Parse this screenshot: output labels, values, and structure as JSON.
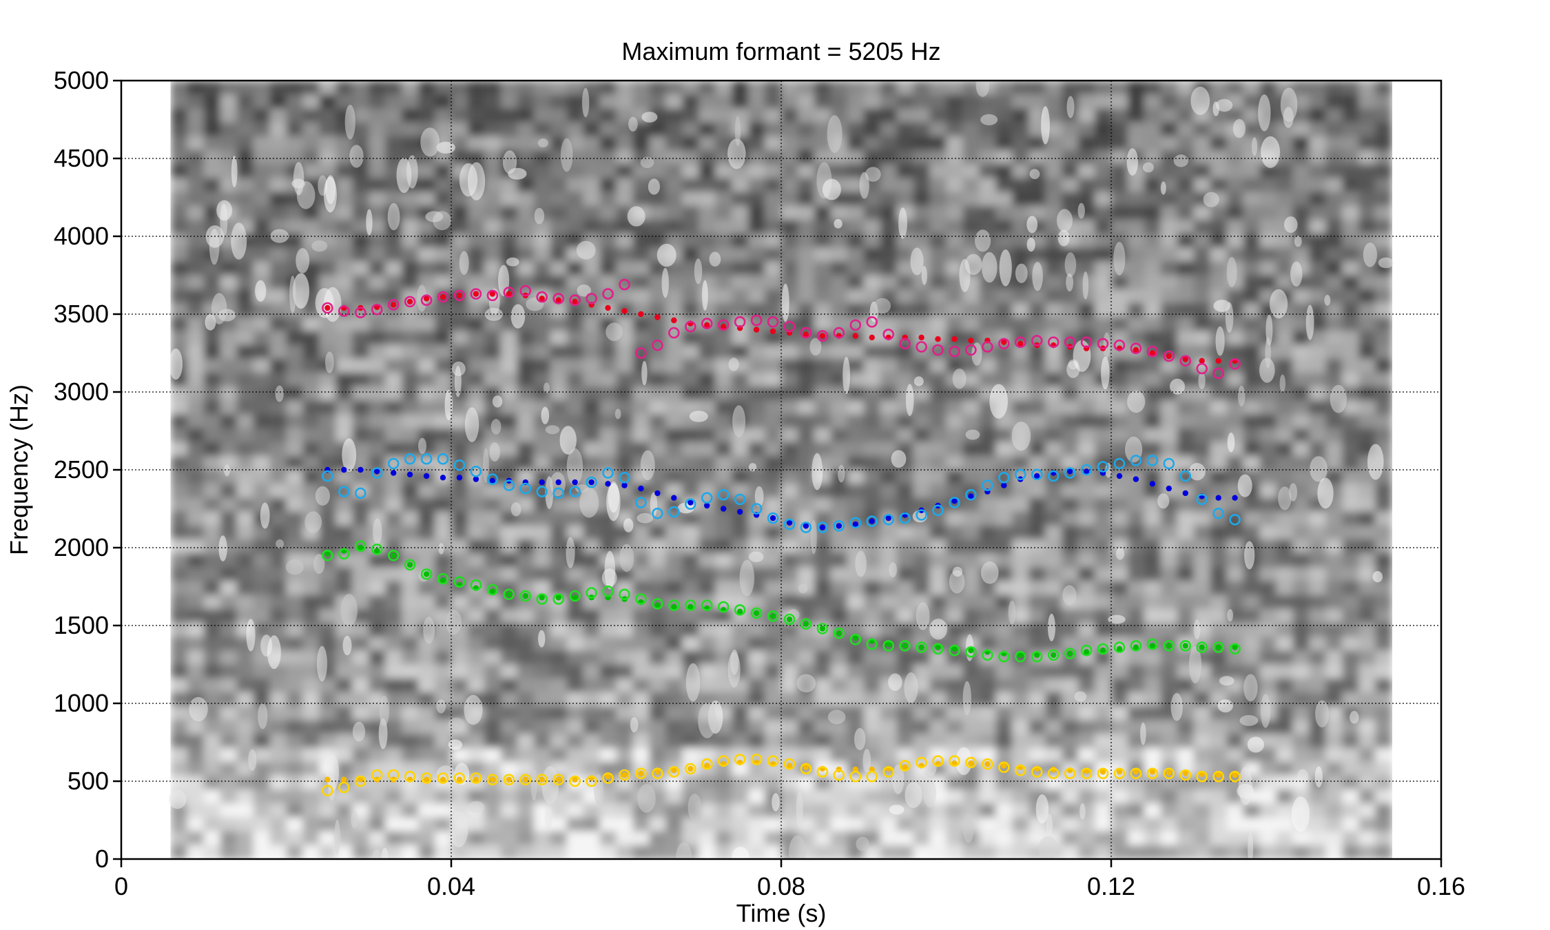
{
  "chart_data": {
    "type": "scatter",
    "title": "Maximum formant = 5205 Hz",
    "xlabel": "Time (s)",
    "ylabel": "Frequency (Hz)",
    "xlim": [
      0,
      0.16
    ],
    "ylim": [
      0,
      5000
    ],
    "xticks": [
      0,
      0.04,
      0.08,
      0.12,
      0.16
    ],
    "xtick_labels": [
      "0",
      "0.04",
      "0.08",
      "0.12",
      "0.16"
    ],
    "yticks": [
      0,
      500,
      1000,
      1500,
      2000,
      2500,
      3000,
      3500,
      4000,
      4500,
      5000
    ],
    "ytick_labels": [
      "0",
      "500",
      "1000",
      "1500",
      "2000",
      "2500",
      "3000",
      "3500",
      "4000",
      "4500",
      "5000"
    ],
    "grid": true,
    "spectrogram_time_range": [
      0.006,
      0.154
    ],
    "series": [
      {
        "style": "dots",
        "color": "#e8001c",
        "x": [
          0.025,
          0.027,
          0.029,
          0.031,
          0.033,
          0.035,
          0.037,
          0.039,
          0.041,
          0.043,
          0.045,
          0.047,
          0.049,
          0.051,
          0.053,
          0.055,
          0.057,
          0.059,
          0.061,
          0.063,
          0.065,
          0.067,
          0.069,
          0.071,
          0.073,
          0.075,
          0.077,
          0.079,
          0.081,
          0.083,
          0.085,
          0.087,
          0.089,
          0.091,
          0.093,
          0.095,
          0.097,
          0.099,
          0.101,
          0.103,
          0.105,
          0.107,
          0.109,
          0.111,
          0.113,
          0.115,
          0.117,
          0.119,
          0.121,
          0.123,
          0.125,
          0.127,
          0.129,
          0.131,
          0.133,
          0.135
        ],
        "y": [
          3540,
          3540,
          3540,
          3545,
          3560,
          3580,
          3600,
          3610,
          3620,
          3630,
          3630,
          3630,
          3620,
          3600,
          3590,
          3580,
          3560,
          3540,
          3520,
          3500,
          3480,
          3460,
          3440,
          3430,
          3420,
          3410,
          3400,
          3390,
          3380,
          3370,
          3360,
          3360,
          3360,
          3350,
          3350,
          3350,
          3350,
          3340,
          3340,
          3330,
          3330,
          3320,
          3310,
          3300,
          3300,
          3290,
          3280,
          3280,
          3280,
          3270,
          3250,
          3230,
          3210,
          3200,
          3200,
          3200
        ]
      },
      {
        "style": "circles",
        "color": "#e0208a",
        "x": [
          0.025,
          0.027,
          0.029,
          0.031,
          0.033,
          0.035,
          0.037,
          0.039,
          0.041,
          0.043,
          0.045,
          0.047,
          0.049,
          0.051,
          0.053,
          0.055,
          0.057,
          0.059,
          0.061,
          0.063,
          0.065,
          0.067,
          0.069,
          0.071,
          0.073,
          0.075,
          0.077,
          0.079,
          0.081,
          0.083,
          0.085,
          0.087,
          0.089,
          0.091,
          0.093,
          0.095,
          0.097,
          0.099,
          0.101,
          0.103,
          0.105,
          0.107,
          0.109,
          0.111,
          0.113,
          0.115,
          0.117,
          0.119,
          0.121,
          0.123,
          0.125,
          0.127,
          0.129,
          0.131,
          0.133,
          0.135
        ],
        "y": [
          3540,
          3520,
          3510,
          3530,
          3560,
          3580,
          3590,
          3610,
          3620,
          3630,
          3620,
          3640,
          3650,
          3610,
          3600,
          3590,
          3600,
          3630,
          3690,
          3250,
          3300,
          3380,
          3420,
          3440,
          3430,
          3450,
          3460,
          3450,
          3420,
          3380,
          3360,
          3380,
          3430,
          3450,
          3370,
          3310,
          3290,
          3270,
          3260,
          3270,
          3290,
          3310,
          3320,
          3330,
          3320,
          3320,
          3320,
          3310,
          3300,
          3280,
          3260,
          3230,
          3200,
          3150,
          3120,
          3180
        ]
      },
      {
        "style": "dots",
        "color": "#0000dd",
        "x": [
          0.025,
          0.027,
          0.029,
          0.031,
          0.033,
          0.035,
          0.037,
          0.039,
          0.041,
          0.043,
          0.045,
          0.047,
          0.049,
          0.051,
          0.053,
          0.055,
          0.057,
          0.059,
          0.061,
          0.063,
          0.065,
          0.067,
          0.069,
          0.071,
          0.073,
          0.075,
          0.077,
          0.079,
          0.081,
          0.083,
          0.085,
          0.087,
          0.089,
          0.091,
          0.093,
          0.095,
          0.097,
          0.099,
          0.101,
          0.103,
          0.105,
          0.107,
          0.109,
          0.111,
          0.113,
          0.115,
          0.117,
          0.119,
          0.121,
          0.123,
          0.125,
          0.127,
          0.129,
          0.131,
          0.133,
          0.135
        ],
        "y": [
          2500,
          2500,
          2500,
          2490,
          2480,
          2470,
          2460,
          2450,
          2450,
          2440,
          2430,
          2430,
          2420,
          2420,
          2420,
          2420,
          2420,
          2410,
          2400,
          2380,
          2350,
          2320,
          2290,
          2270,
          2250,
          2230,
          2210,
          2190,
          2160,
          2140,
          2130,
          2140,
          2150,
          2170,
          2190,
          2210,
          2240,
          2270,
          2300,
          2330,
          2360,
          2400,
          2440,
          2460,
          2480,
          2490,
          2490,
          2480,
          2460,
          2440,
          2410,
          2380,
          2350,
          2330,
          2320,
          2320
        ]
      },
      {
        "style": "circles",
        "color": "#1ea8ea",
        "x": [
          0.025,
          0.027,
          0.029,
          0.031,
          0.033,
          0.035,
          0.037,
          0.039,
          0.041,
          0.043,
          0.045,
          0.047,
          0.049,
          0.051,
          0.053,
          0.055,
          0.057,
          0.059,
          0.061,
          0.063,
          0.065,
          0.067,
          0.069,
          0.071,
          0.073,
          0.075,
          0.077,
          0.079,
          0.081,
          0.083,
          0.085,
          0.087,
          0.089,
          0.091,
          0.093,
          0.095,
          0.097,
          0.099,
          0.101,
          0.103,
          0.105,
          0.107,
          0.109,
          0.111,
          0.113,
          0.115,
          0.117,
          0.119,
          0.121,
          0.123,
          0.125,
          0.127,
          0.129,
          0.131,
          0.133,
          0.135
        ],
        "y": [
          2460,
          2360,
          2350,
          2480,
          2540,
          2570,
          2570,
          2570,
          2530,
          2490,
          2440,
          2400,
          2380,
          2360,
          2350,
          2360,
          2420,
          2480,
          2450,
          2290,
          2220,
          2230,
          2280,
          2320,
          2340,
          2310,
          2250,
          2190,
          2150,
          2130,
          2130,
          2140,
          2160,
          2170,
          2180,
          2190,
          2210,
          2240,
          2290,
          2340,
          2400,
          2450,
          2470,
          2470,
          2460,
          2480,
          2500,
          2520,
          2540,
          2560,
          2560,
          2540,
          2460,
          2310,
          2220,
          2180
        ]
      },
      {
        "style": "dots",
        "color": "#00bb00",
        "x": [
          0.025,
          0.027,
          0.029,
          0.031,
          0.033,
          0.035,
          0.037,
          0.039,
          0.041,
          0.043,
          0.045,
          0.047,
          0.049,
          0.051,
          0.053,
          0.055,
          0.057,
          0.059,
          0.061,
          0.063,
          0.065,
          0.067,
          0.069,
          0.071,
          0.073,
          0.075,
          0.077,
          0.079,
          0.081,
          0.083,
          0.085,
          0.087,
          0.089,
          0.091,
          0.093,
          0.095,
          0.097,
          0.099,
          0.101,
          0.103,
          0.105,
          0.107,
          0.109,
          0.111,
          0.113,
          0.115,
          0.117,
          0.119,
          0.121,
          0.123,
          0.125,
          0.127,
          0.129,
          0.131,
          0.133,
          0.135
        ],
        "y": [
          1960,
          1980,
          2000,
          1980,
          1950,
          1890,
          1830,
          1790,
          1760,
          1740,
          1720,
          1700,
          1690,
          1680,
          1680,
          1680,
          1680,
          1680,
          1670,
          1650,
          1630,
          1620,
          1620,
          1610,
          1600,
          1590,
          1580,
          1560,
          1540,
          1510,
          1480,
          1450,
          1420,
          1400,
          1380,
          1370,
          1360,
          1360,
          1350,
          1340,
          1330,
          1320,
          1310,
          1310,
          1310,
          1320,
          1330,
          1340,
          1350,
          1360,
          1370,
          1370,
          1370,
          1360,
          1360,
          1360
        ]
      },
      {
        "style": "circles",
        "color": "#22dd22",
        "x": [
          0.025,
          0.027,
          0.029,
          0.031,
          0.033,
          0.035,
          0.037,
          0.039,
          0.041,
          0.043,
          0.045,
          0.047,
          0.049,
          0.051,
          0.053,
          0.055,
          0.057,
          0.059,
          0.061,
          0.063,
          0.065,
          0.067,
          0.069,
          0.071,
          0.073,
          0.075,
          0.077,
          0.079,
          0.081,
          0.083,
          0.085,
          0.087,
          0.089,
          0.091,
          0.093,
          0.095,
          0.097,
          0.099,
          0.101,
          0.103,
          0.105,
          0.107,
          0.109,
          0.111,
          0.113,
          0.115,
          0.117,
          0.119,
          0.121,
          0.123,
          0.125,
          0.127,
          0.129,
          0.131,
          0.133,
          0.135
        ],
        "y": [
          1950,
          1960,
          2010,
          1990,
          1950,
          1890,
          1830,
          1800,
          1780,
          1760,
          1730,
          1700,
          1690,
          1670,
          1670,
          1690,
          1710,
          1720,
          1700,
          1670,
          1640,
          1630,
          1630,
          1630,
          1620,
          1600,
          1580,
          1560,
          1540,
          1510,
          1480,
          1450,
          1410,
          1380,
          1370,
          1370,
          1360,
          1350,
          1340,
          1330,
          1310,
          1300,
          1300,
          1300,
          1310,
          1320,
          1340,
          1350,
          1360,
          1370,
          1380,
          1370,
          1370,
          1360,
          1360,
          1350
        ]
      },
      {
        "style": "dots",
        "color": "#f5b800",
        "x": [
          0.025,
          0.027,
          0.029,
          0.031,
          0.033,
          0.035,
          0.037,
          0.039,
          0.041,
          0.043,
          0.045,
          0.047,
          0.049,
          0.051,
          0.053,
          0.055,
          0.057,
          0.059,
          0.061,
          0.063,
          0.065,
          0.067,
          0.069,
          0.071,
          0.073,
          0.075,
          0.077,
          0.079,
          0.081,
          0.083,
          0.085,
          0.087,
          0.089,
          0.091,
          0.093,
          0.095,
          0.097,
          0.099,
          0.101,
          0.103,
          0.105,
          0.107,
          0.109,
          0.111,
          0.113,
          0.115,
          0.117,
          0.119,
          0.121,
          0.123,
          0.125,
          0.127,
          0.129,
          0.131,
          0.133,
          0.135
        ],
        "y": [
          510,
          510,
          510,
          510,
          510,
          510,
          510,
          510,
          510,
          510,
          510,
          510,
          510,
          510,
          510,
          510,
          520,
          530,
          540,
          550,
          560,
          570,
          580,
          600,
          610,
          620,
          620,
          610,
          600,
          590,
          580,
          575,
          575,
          575,
          580,
          590,
          600,
          610,
          615,
          615,
          610,
          600,
          590,
          580,
          575,
          570,
          565,
          560,
          560,
          560,
          560,
          555,
          550,
          545,
          540,
          540
        ]
      },
      {
        "style": "circles",
        "color": "#ffd400",
        "x": [
          0.025,
          0.027,
          0.029,
          0.031,
          0.033,
          0.035,
          0.037,
          0.039,
          0.041,
          0.043,
          0.045,
          0.047,
          0.049,
          0.051,
          0.053,
          0.055,
          0.057,
          0.059,
          0.061,
          0.063,
          0.065,
          0.067,
          0.069,
          0.071,
          0.073,
          0.075,
          0.077,
          0.079,
          0.081,
          0.083,
          0.085,
          0.087,
          0.089,
          0.091,
          0.093,
          0.095,
          0.097,
          0.099,
          0.101,
          0.103,
          0.105,
          0.107,
          0.109,
          0.111,
          0.113,
          0.115,
          0.117,
          0.119,
          0.121,
          0.123,
          0.125,
          0.127,
          0.129,
          0.131,
          0.133,
          0.135
        ],
        "y": [
          440,
          460,
          500,
          540,
          540,
          530,
          520,
          520,
          520,
          520,
          510,
          510,
          510,
          510,
          510,
          500,
          500,
          520,
          540,
          550,
          550,
          560,
          580,
          610,
          630,
          640,
          640,
          630,
          610,
          580,
          560,
          540,
          530,
          530,
          560,
          600,
          620,
          630,
          630,
          620,
          610,
          590,
          570,
          560,
          550,
          550,
          550,
          550,
          550,
          550,
          550,
          550,
          540,
          530,
          530,
          530
        ]
      }
    ]
  }
}
